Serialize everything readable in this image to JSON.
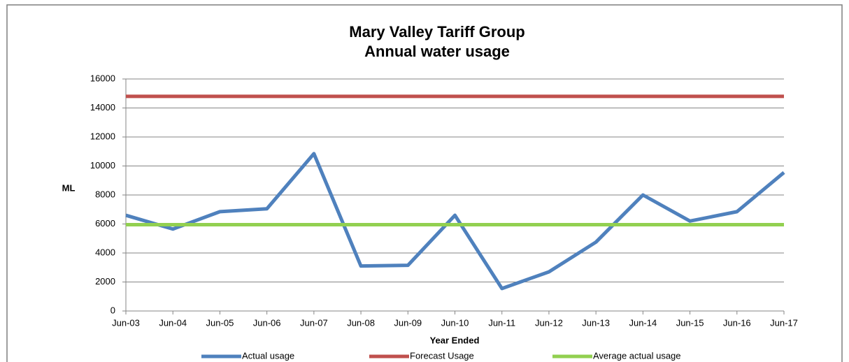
{
  "chart_data": {
    "type": "line",
    "title": [
      "Mary Valley Tariff Group",
      "Annual water usage"
    ],
    "y_label": "ML",
    "x_label": "Year Ended",
    "categories": [
      "Jun-03",
      "Jun-04",
      "Jun-05",
      "Jun-06",
      "Jun-07",
      "Jun-08",
      "Jun-09",
      "Jun-10",
      "Jun-11",
      "Jun-12",
      "Jun-13",
      "Jun-14",
      "Jun-15",
      "Jun-16",
      "Jun-17"
    ],
    "series": [
      {
        "name": "Actual usage",
        "color": "#4f81bd",
        "values": [
          6600,
          5650,
          6850,
          7050,
          10850,
          3100,
          3150,
          6600,
          1550,
          2700,
          4750,
          8000,
          6200,
          6850,
          9550
        ]
      },
      {
        "name": "Forecast Usage",
        "color": "#c0504d",
        "values": [
          14800,
          14800,
          14800,
          14800,
          14800,
          14800,
          14800,
          14800,
          14800,
          14800,
          14800,
          14800,
          14800,
          14800,
          14800
        ]
      },
      {
        "name": "Average actual usage",
        "color": "#92d050",
        "values": [
          5950,
          5950,
          5950,
          5950,
          5950,
          5950,
          5950,
          5950,
          5950,
          5950,
          5950,
          5950,
          5950,
          5950,
          5950
        ]
      }
    ],
    "ylim": [
      0,
      16000
    ],
    "yticks": [
      0,
      2000,
      4000,
      6000,
      8000,
      10000,
      12000,
      14000,
      16000
    ],
    "grid": true,
    "legend": "bottom"
  }
}
